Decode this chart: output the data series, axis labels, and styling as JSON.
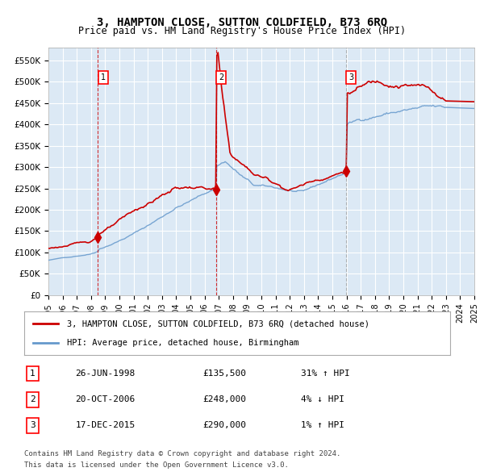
{
  "title": "3, HAMPTON CLOSE, SUTTON COLDFIELD, B73 6RQ",
  "subtitle": "Price paid vs. HM Land Registry's House Price Index (HPI)",
  "background_color": "#dce9f5",
  "plot_bg_color": "#dce9f5",
  "x_start_year": 1995,
  "x_end_year": 2025,
  "y_min": 0,
  "y_max": 580000,
  "y_ticks": [
    0,
    50000,
    100000,
    150000,
    200000,
    250000,
    300000,
    350000,
    400000,
    450000,
    500000,
    550000
  ],
  "x_tick_years": [
    1995,
    1996,
    1997,
    1998,
    1999,
    2000,
    2001,
    2002,
    2003,
    2004,
    2005,
    2006,
    2007,
    2008,
    2009,
    2010,
    2011,
    2012,
    2013,
    2014,
    2015,
    2016,
    2017,
    2018,
    2019,
    2020,
    2021,
    2022,
    2023,
    2024,
    2025
  ],
  "sale_color": "#cc0000",
  "hpi_color": "#6699cc",
  "sale_marker_color": "#cc0000",
  "vline_color": "#cc0000",
  "vline3_color": "#888888",
  "sales": [
    {
      "label": "1",
      "date_x": 1998.48,
      "price": 135500,
      "date_str": "26-JUN-1998",
      "hpi_pct": "31% ↑ HPI"
    },
    {
      "label": "2",
      "date_x": 2006.8,
      "price": 248000,
      "date_str": "20-OCT-2006",
      "hpi_pct": "4% ↓ HPI"
    },
    {
      "label": "3",
      "date_x": 2015.96,
      "price": 290000,
      "date_str": "17-DEC-2015",
      "hpi_pct": "1% ↑ HPI"
    }
  ],
  "legend_label_red": "3, HAMPTON CLOSE, SUTTON COLDFIELD, B73 6RQ (detached house)",
  "legend_label_blue": "HPI: Average price, detached house, Birmingham",
  "footer_line1": "Contains HM Land Registry data © Crown copyright and database right 2024.",
  "footer_line2": "This data is licensed under the Open Government Licence v3.0."
}
